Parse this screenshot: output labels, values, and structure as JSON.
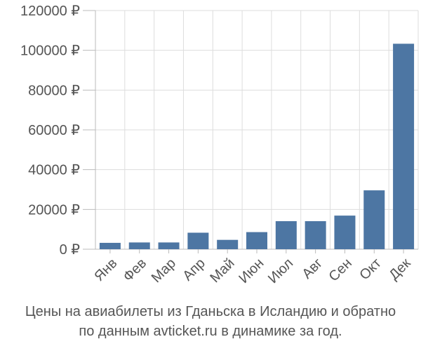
{
  "chart_data": {
    "type": "bar",
    "categories": [
      "Янв",
      "Фев",
      "Мар",
      "Апр",
      "Май",
      "Июн",
      "Июл",
      "Авг",
      "Сен",
      "Окт",
      "Дек"
    ],
    "values": [
      3200,
      3400,
      3400,
      8300,
      4700,
      8600,
      14100,
      14100,
      16900,
      29600,
      103300
    ],
    "ylim": [
      0,
      120000
    ],
    "yticks": [
      0,
      20000,
      40000,
      60000,
      80000,
      100000,
      120000
    ],
    "ytick_labels": [
      "0 ₽",
      "20000 ₽",
      "40000 ₽",
      "60000 ₽",
      "80000 ₽",
      "100000 ₽",
      "120000 ₽"
    ],
    "grid": true,
    "bar_color": "#4d76a3",
    "grid_color": "#dddddd",
    "axis_color": "#bbbbbb"
  },
  "caption": {
    "line1": "Цены на авиабилеты из Гданьска в Исландию и обратно",
    "line2": "по данным avticket.ru в динамике за год."
  }
}
